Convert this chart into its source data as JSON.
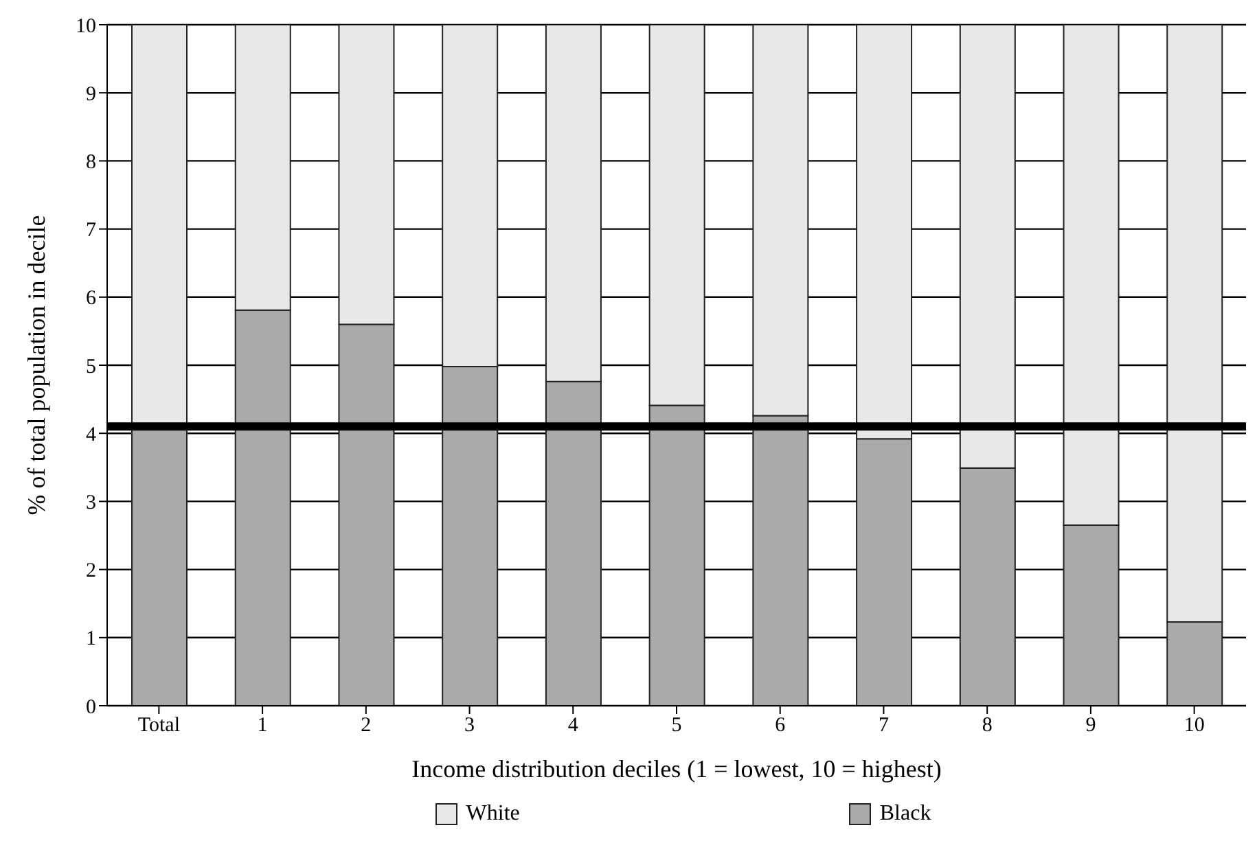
{
  "chart_data": {
    "type": "bar",
    "stacked": true,
    "xlabel": "Income distribution deciles (1 = lowest, 10 = highest)",
    "ylabel": "% of total population in decile",
    "categories": [
      "Total",
      "1",
      "2",
      "3",
      "4",
      "5",
      "6",
      "7",
      "8",
      "9",
      "10"
    ],
    "series": [
      {
        "name": "Black",
        "color": "#aaaaaa",
        "values": [
          4.12,
          5.81,
          5.6,
          4.98,
          4.76,
          4.41,
          4.26,
          3.92,
          3.49,
          2.65,
          1.23
        ]
      },
      {
        "name": "White",
        "color": "#e8e8e8",
        "values": [
          5.88,
          4.19,
          4.4,
          5.02,
          5.24,
          5.59,
          5.74,
          6.08,
          6.51,
          7.35,
          8.77
        ]
      }
    ],
    "ylim": [
      0,
      10
    ],
    "yticks": [
      0,
      1,
      2,
      3,
      4,
      5,
      6,
      7,
      8,
      9,
      10
    ],
    "grid": "y",
    "legend": "bottom",
    "ref_lines": [
      {
        "axis": "y",
        "value": 4.1,
        "color": "#000000"
      }
    ]
  }
}
